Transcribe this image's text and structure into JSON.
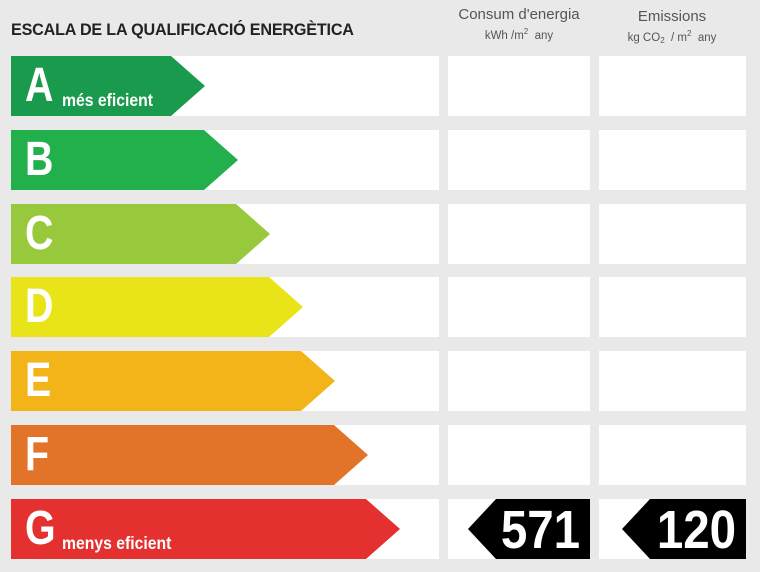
{
  "title": "ESCALA DE LA QUALIFICACIÓ ENERGÈTICA",
  "headers": {
    "consum": {
      "label": "Consum d'energia",
      "unit_pre": "kWh /m",
      "unit_sup": "2",
      "unit_post": "  any"
    },
    "emissions": {
      "label": "Emissions",
      "unit_pre": "kg CO",
      "unit_sub": "2",
      "unit_mid": "  / m",
      "unit_sup": "2",
      "unit_post": "  any"
    }
  },
  "scale": [
    {
      "letter": "A",
      "sublabel": "més eficient",
      "color": "#1a9a4c"
    },
    {
      "letter": "B",
      "sublabel": "",
      "color": "#21b04b"
    },
    {
      "letter": "C",
      "sublabel": "",
      "color": "#98c93c"
    },
    {
      "letter": "D",
      "sublabel": "",
      "color": "#e8e417"
    },
    {
      "letter": "E",
      "sublabel": "",
      "color": "#f2b419"
    },
    {
      "letter": "F",
      "sublabel": "",
      "color": "#e2742a"
    },
    {
      "letter": "G",
      "sublabel": "menys eficient",
      "color": "#e43130"
    }
  ],
  "rating": {
    "letter": "G",
    "consum_value": "571",
    "emissions_value": "120"
  }
}
